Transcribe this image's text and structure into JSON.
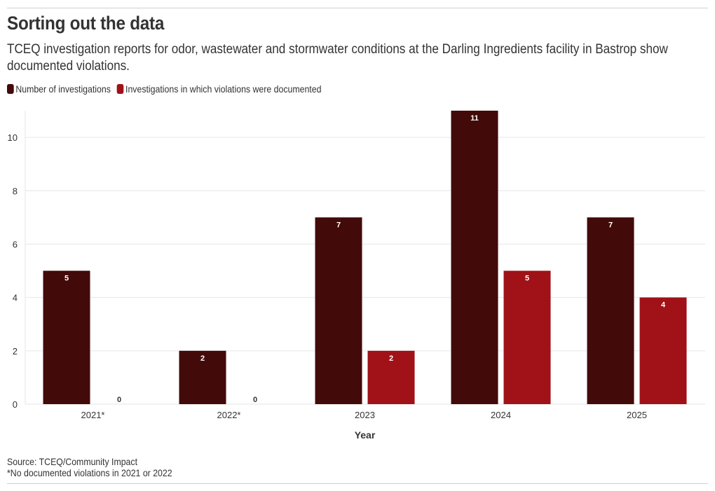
{
  "header": {
    "title": "Sorting out the data",
    "subtitle": "TCEQ investigation reports for odor, wastewater and stormwater conditions at the Darling Ingredients facility in Bastrop show documented violations."
  },
  "footer": {
    "source": "Source: TCEQ/Community Impact",
    "note": "*No documented violations in 2021 or 2022"
  },
  "colors": {
    "series_1": "#430a0a",
    "series_2": "#a01218",
    "gridline": "#e6e6e6",
    "label_text": "#ffffff",
    "zero_label_text": "#333333"
  },
  "chart_data": {
    "type": "bar",
    "xlabel": "Year",
    "ylabel": "",
    "categories": [
      "2021*",
      "2022*",
      "2023",
      "2024",
      "2025"
    ],
    "series": [
      {
        "name": "Number of investigations",
        "values": [
          5,
          2,
          7,
          11,
          7
        ]
      },
      {
        "name": "Investigations in which violations were documented",
        "values": [
          0,
          0,
          2,
          5,
          4
        ]
      }
    ],
    "ylim": [
      0,
      11
    ],
    "yticks": [
      0,
      2,
      4,
      6,
      8,
      10
    ],
    "grid": true,
    "legend_position": "top-left"
  }
}
